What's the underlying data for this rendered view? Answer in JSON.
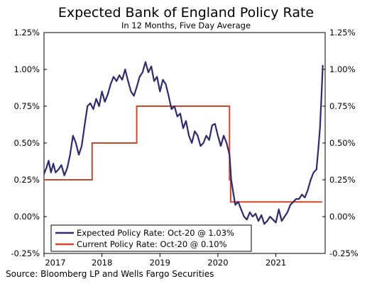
{
  "chart_data": {
    "type": "line",
    "title": "Expected Bank of England Policy Rate",
    "subtitle": "In 12 Months, Five Day Average",
    "source": "Source: Bloomberg LP and Wells Fargo Securities",
    "x_range": [
      2017.0,
      2021.85
    ],
    "x_ticks": [
      2017,
      2018,
      2019,
      2020,
      2021
    ],
    "x_tick_labels": [
      "2017",
      "2018",
      "2019",
      "2020",
      "2021"
    ],
    "ylim": [
      -0.25,
      1.25
    ],
    "y_ticks": [
      -0.25,
      0.0,
      0.25,
      0.5,
      0.75,
      1.0,
      1.25
    ],
    "y_tick_labels": [
      "-0.25%",
      "0.00%",
      "0.25%",
      "0.50%",
      "0.75%",
      "1.00%",
      "1.25%"
    ],
    "legend_position": "bottom-left",
    "grid": false,
    "series": [
      {
        "name": "Expected Policy Rate: Oct-20 @ 1.03%",
        "color": "#2e2a6e",
        "x": [
          2017.0,
          2017.04,
          2017.08,
          2017.12,
          2017.16,
          2017.2,
          2017.25,
          2017.3,
          2017.35,
          2017.4,
          2017.45,
          2017.5,
          2017.55,
          2017.6,
          2017.65,
          2017.7,
          2017.75,
          2017.8,
          2017.85,
          2017.9,
          2017.95,
          2018.0,
          2018.05,
          2018.1,
          2018.15,
          2018.2,
          2018.25,
          2018.3,
          2018.35,
          2018.4,
          2018.45,
          2018.5,
          2018.55,
          2018.6,
          2018.65,
          2018.7,
          2018.75,
          2018.8,
          2018.85,
          2018.9,
          2018.95,
          2019.0,
          2019.05,
          2019.1,
          2019.15,
          2019.2,
          2019.25,
          2019.3,
          2019.35,
          2019.4,
          2019.45,
          2019.5,
          2019.55,
          2019.6,
          2019.65,
          2019.7,
          2019.75,
          2019.8,
          2019.85,
          2019.9,
          2019.95,
          2020.0,
          2020.05,
          2020.1,
          2020.15,
          2020.2,
          2020.23,
          2020.27,
          2020.3,
          2020.35,
          2020.4,
          2020.45,
          2020.5,
          2020.55,
          2020.6,
          2020.65,
          2020.7,
          2020.75,
          2020.8,
          2020.85,
          2020.9,
          2020.95,
          2021.0,
          2021.05,
          2021.1,
          2021.15,
          2021.2,
          2021.25,
          2021.3,
          2021.35,
          2021.4,
          2021.45,
          2021.5,
          2021.55,
          2021.6,
          2021.65,
          2021.7,
          2021.73,
          2021.76,
          2021.79,
          2021.81
        ],
        "values": [
          0.29,
          0.33,
          0.38,
          0.3,
          0.36,
          0.3,
          0.32,
          0.35,
          0.28,
          0.33,
          0.42,
          0.55,
          0.5,
          0.42,
          0.48,
          0.62,
          0.75,
          0.77,
          0.73,
          0.8,
          0.75,
          0.85,
          0.78,
          0.83,
          0.9,
          0.95,
          0.92,
          0.96,
          0.93,
          1.0,
          0.92,
          0.85,
          0.82,
          0.88,
          0.95,
          0.98,
          1.05,
          0.98,
          1.02,
          0.92,
          0.95,
          0.85,
          0.93,
          0.9,
          0.82,
          0.73,
          0.75,
          0.68,
          0.7,
          0.6,
          0.65,
          0.55,
          0.5,
          0.58,
          0.55,
          0.48,
          0.5,
          0.55,
          0.52,
          0.62,
          0.63,
          0.55,
          0.48,
          0.55,
          0.5,
          0.42,
          0.25,
          0.15,
          0.08,
          0.1,
          0.05,
          0.0,
          -0.02,
          0.03,
          0.0,
          0.02,
          -0.03,
          0.01,
          -0.05,
          -0.03,
          0.0,
          -0.02,
          -0.04,
          0.05,
          -0.03,
          0.0,
          0.03,
          0.08,
          0.1,
          0.12,
          0.12,
          0.15,
          0.13,
          0.18,
          0.25,
          0.3,
          0.32,
          0.45,
          0.6,
          0.85,
          1.03
        ]
      },
      {
        "name": "Current Policy Rate: Oct-20 @ 0.10%",
        "color": "#d0462c",
        "x": [
          2017.0,
          2017.83,
          2017.83,
          2018.6,
          2018.6,
          2020.2,
          2020.2,
          2020.22,
          2020.22,
          2021.8
        ],
        "values": [
          0.25,
          0.25,
          0.5,
          0.5,
          0.75,
          0.75,
          0.25,
          0.25,
          0.1,
          0.1
        ]
      }
    ]
  }
}
